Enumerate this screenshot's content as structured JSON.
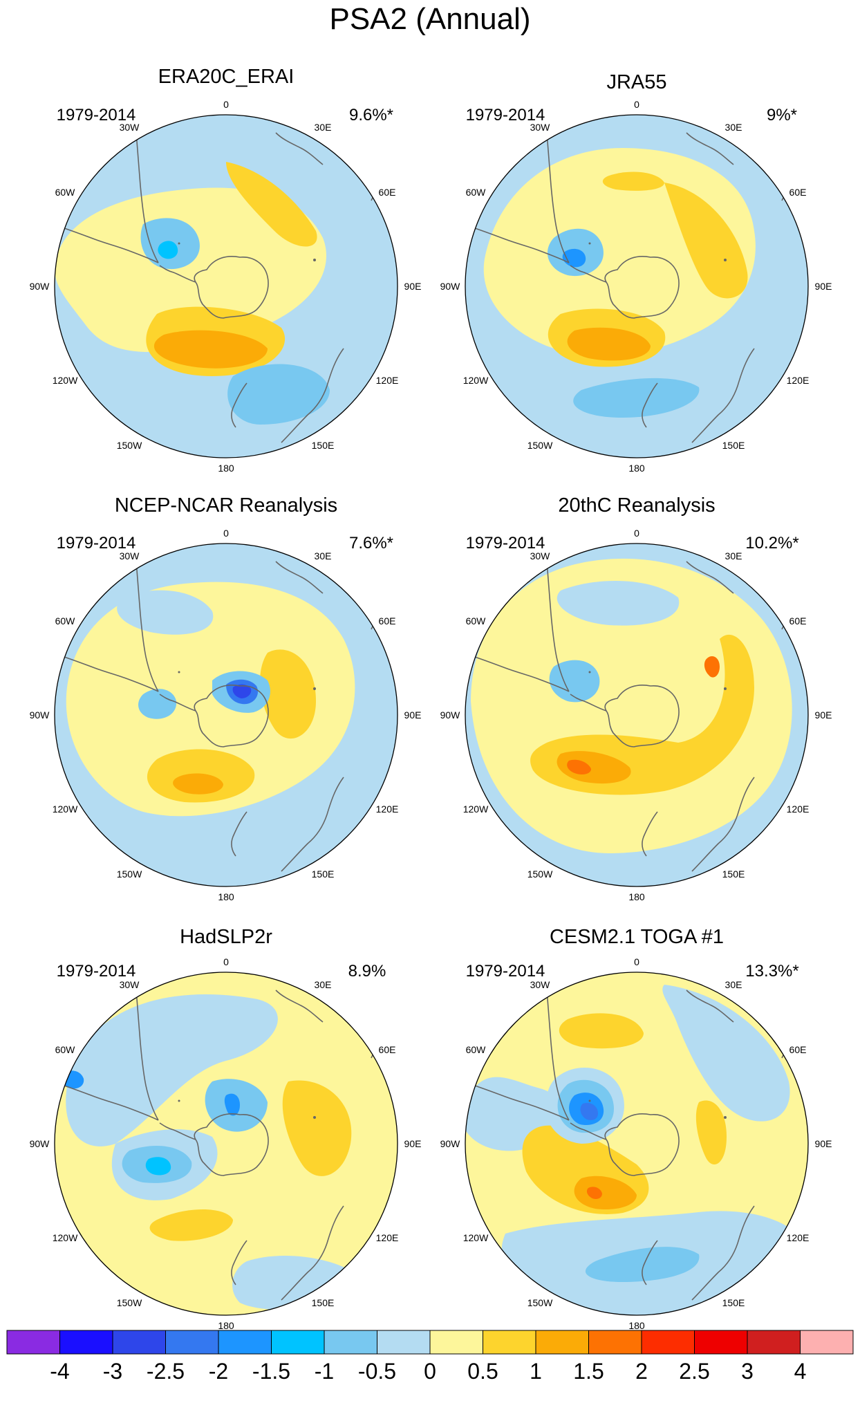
{
  "title": "PSA2 (Annual)",
  "lon_labels": [
    "0",
    "30E",
    "60E",
    "90E",
    "120E",
    "150E",
    "180",
    "150W",
    "120W",
    "90W",
    "60W",
    "30W"
  ],
  "panels": [
    {
      "title": "ERA20C_ERAI",
      "years": "1979-2014",
      "variance": "9.6%*"
    },
    {
      "title": "JRA55",
      "years": "1979-2014",
      "variance": "9%*"
    },
    {
      "title": "NCEP-NCAR Reanalysis",
      "years": "1979-2014",
      "variance": "7.6%*"
    },
    {
      "title": "20thC Reanalysis",
      "years": "1979-2014",
      "variance": "10.2%*"
    },
    {
      "title": "HadSLP2r",
      "years": "1979-2014",
      "variance": "8.9%"
    },
    {
      "title": "CESM2.1 TOGA #1",
      "years": "1979-2014",
      "variance": "13.3%*"
    }
  ],
  "colorbar": {
    "labels": [
      "-4",
      "-3",
      "-2.5",
      "-2",
      "-1.5",
      "-1",
      "-0.5",
      "0",
      "0.5",
      "1",
      "1.5",
      "2",
      "2.5",
      "3",
      "4"
    ],
    "colors": [
      "#8a2be2",
      "#1a0fff",
      "#2e46ea",
      "#3478f0",
      "#1d95ff",
      "#00c3ff",
      "#78c8f0",
      "#b4dcf2",
      "#fdf69b",
      "#fdd42d",
      "#fbab07",
      "#fd7203",
      "#fd2d00",
      "#ee0000",
      "#d01f1f",
      "#fdb0b0"
    ]
  },
  "colors": {
    "lb": "#b4dcf2",
    "mb": "#78c8f0",
    "b1": "#00c3ff",
    "b2": "#1d95ff",
    "b3": "#3478f0",
    "b4": "#2e46ea",
    "py": "#fdf69b",
    "y1": "#fdd42d",
    "y2": "#fbab07",
    "y3": "#fd7203",
    "coast": "#666666"
  }
}
